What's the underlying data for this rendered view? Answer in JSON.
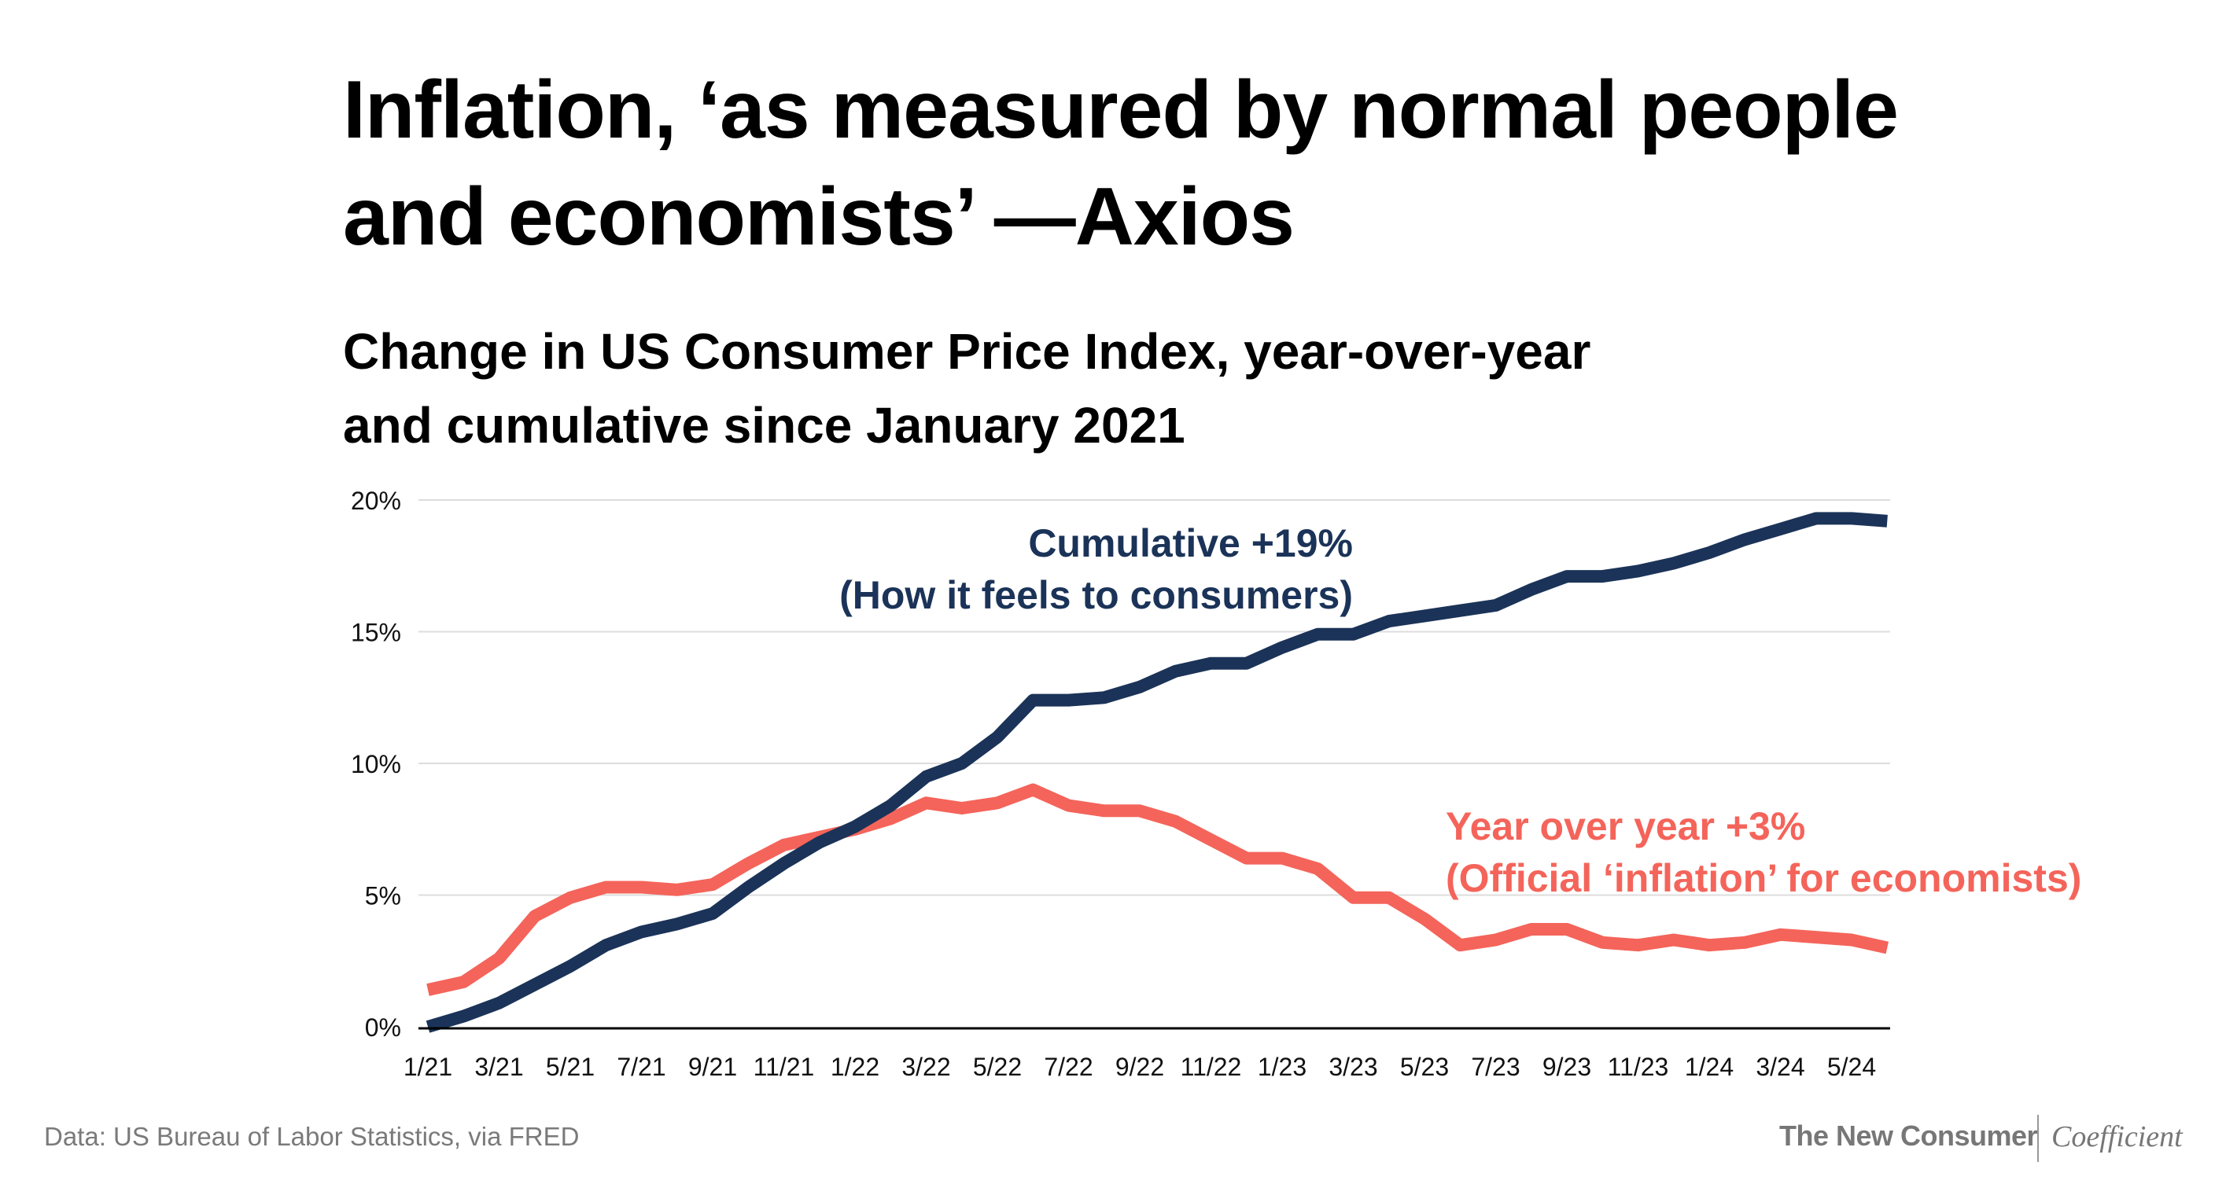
{
  "header": {
    "title_line1": "Inflation, ‘as measured by normal people",
    "title_line2": "and economists’ —Axios",
    "subtitle_line1": "Change in US Consumer Price Index, year-over-year",
    "subtitle_line2": "and cumulative since January 2021"
  },
  "footer": {
    "source": "Data: US Bureau of Labor Statistics, via FRED",
    "brand_1": "The New Consumer",
    "brand_2": "Coefficient"
  },
  "colors": {
    "cumulative": "#1b3358",
    "yoy": "#f4645a",
    "grid": "#dddddd",
    "axis": "#000000"
  },
  "chart_data": {
    "type": "line",
    "title": "Change in US Consumer Price Index, year-over-year and cumulative since January 2021",
    "x_tick_labels": [
      "1/21",
      "3/21",
      "5/21",
      "7/21",
      "9/21",
      "11/21",
      "1/22",
      "3/22",
      "5/22",
      "7/22",
      "9/22",
      "11/22",
      "1/23",
      "3/23",
      "5/23",
      "7/23",
      "9/23",
      "11/23",
      "1/24",
      "3/24",
      "5/24"
    ],
    "y_ticks": [
      0,
      5,
      10,
      15,
      20
    ],
    "y_tick_labels": [
      "0%",
      "5%",
      "10%",
      "15%",
      "20%"
    ],
    "ylim": [
      0,
      20
    ],
    "grid": true,
    "x": [
      "1/21",
      "2/21",
      "3/21",
      "4/21",
      "5/21",
      "6/21",
      "7/21",
      "8/21",
      "9/21",
      "10/21",
      "11/21",
      "12/21",
      "1/22",
      "2/22",
      "3/22",
      "4/22",
      "5/22",
      "6/22",
      "7/22",
      "8/22",
      "9/22",
      "10/22",
      "11/22",
      "12/22",
      "1/23",
      "2/23",
      "3/23",
      "4/23",
      "5/23",
      "6/23",
      "7/23",
      "8/23",
      "9/23",
      "10/23",
      "11/23",
      "12/23",
      "1/24",
      "2/24",
      "3/24",
      "4/24",
      "5/24",
      "6/24"
    ],
    "series": [
      {
        "name": "Cumulative",
        "label_line1": "Cumulative +19%",
        "label_line2": "(How it feels to consumers)",
        "values": [
          0,
          0.4,
          0.9,
          1.6,
          2.3,
          3.1,
          3.6,
          3.9,
          4.3,
          5.3,
          6.2,
          7.0,
          7.6,
          8.4,
          9.5,
          10.0,
          11.0,
          12.4,
          12.4,
          12.5,
          12.9,
          13.5,
          13.8,
          13.8,
          14.4,
          14.9,
          14.9,
          15.4,
          15.6,
          15.8,
          16.0,
          16.6,
          17.1,
          17.1,
          17.3,
          17.6,
          18.0,
          18.5,
          18.9,
          19.3,
          19.3,
          19.2
        ]
      },
      {
        "name": "Year over year",
        "label_line1": "Year over year +3%",
        "label_line2": "(Official ‘inflation’ for economists)",
        "values": [
          1.4,
          1.7,
          2.6,
          4.2,
          4.9,
          5.3,
          5.3,
          5.2,
          5.4,
          6.2,
          6.9,
          7.2,
          7.5,
          7.9,
          8.5,
          8.3,
          8.5,
          9.0,
          8.4,
          8.2,
          8.2,
          7.8,
          7.1,
          6.4,
          6.4,
          6.0,
          4.9,
          4.9,
          4.1,
          3.1,
          3.3,
          3.7,
          3.7,
          3.2,
          3.1,
          3.3,
          3.1,
          3.2,
          3.5,
          3.4,
          3.3,
          3.0
        ]
      }
    ]
  }
}
